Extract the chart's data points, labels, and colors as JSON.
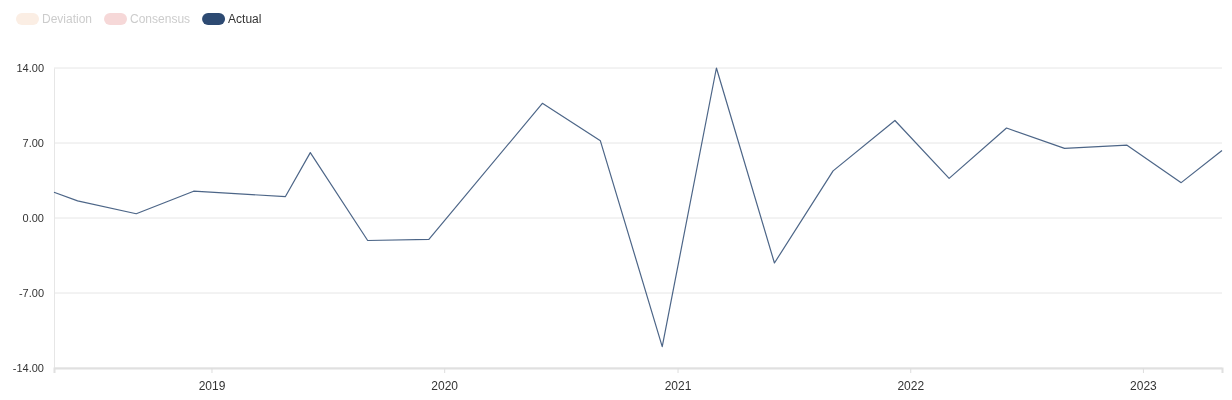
{
  "chart_data": {
    "type": "line",
    "legend": "top left",
    "grid": "y",
    "marker": "none",
    "line_style": "solid",
    "x": [
      "2018-04-29",
      "2018-06-05",
      "2018-09-05",
      "2018-12-04",
      "2019-04-27",
      "2019-06-05",
      "2019-09-03",
      "2019-12-08",
      "2020-06-03",
      "2020-09-02",
      "2020-12-08",
      "2021-03-03",
      "2021-06-02",
      "2021-09-02",
      "2021-12-08",
      "2022-03-03",
      "2022-06-01",
      "2022-08-31",
      "2022-12-07",
      "2023-03-02",
      "2023-05-05"
    ],
    "xlim": [
      "2018-04-29",
      "2023-05-05"
    ],
    "xticks": [
      {
        "value": "2019",
        "label": "2019"
      },
      {
        "value": "2020",
        "label": "2020"
      },
      {
        "value": "2021",
        "label": "2021"
      },
      {
        "value": "2022",
        "label": "2022"
      },
      {
        "value": "2023",
        "label": "2023"
      }
    ],
    "ylim": [
      -14,
      14
    ],
    "yticks": [
      {
        "value": 14,
        "label": "14.00"
      },
      {
        "value": 7,
        "label": "7.00"
      },
      {
        "value": 0,
        "label": "0.00"
      },
      {
        "value": -7,
        "label": "-7.00"
      },
      {
        "value": -14,
        "label": "-14.00"
      }
    ],
    "series": [
      {
        "name": "Deviation",
        "color": "#fbeee4",
        "values": [
          null,
          null,
          null,
          null,
          null,
          null,
          null,
          null,
          null,
          null,
          null,
          null,
          null,
          null,
          null,
          null,
          null,
          null,
          null,
          null,
          null
        ]
      },
      {
        "name": "Consensus",
        "color": "#f6d8d8",
        "values": [
          null,
          null,
          null,
          null,
          null,
          null,
          null,
          null,
          null,
          null,
          null,
          null,
          null,
          null,
          null,
          null,
          null,
          null,
          null,
          null,
          null
        ]
      },
      {
        "name": "Actual",
        "color": "#2d4a72",
        "values": [
          2.4,
          1.6,
          0.4,
          2.5,
          2.0,
          6.1,
          -2.1,
          -2.0,
          10.7,
          7.2,
          -12.0,
          14.0,
          -4.2,
          4.4,
          9.1,
          3.7,
          8.4,
          6.5,
          6.8,
          3.3,
          6.3
        ]
      }
    ]
  }
}
